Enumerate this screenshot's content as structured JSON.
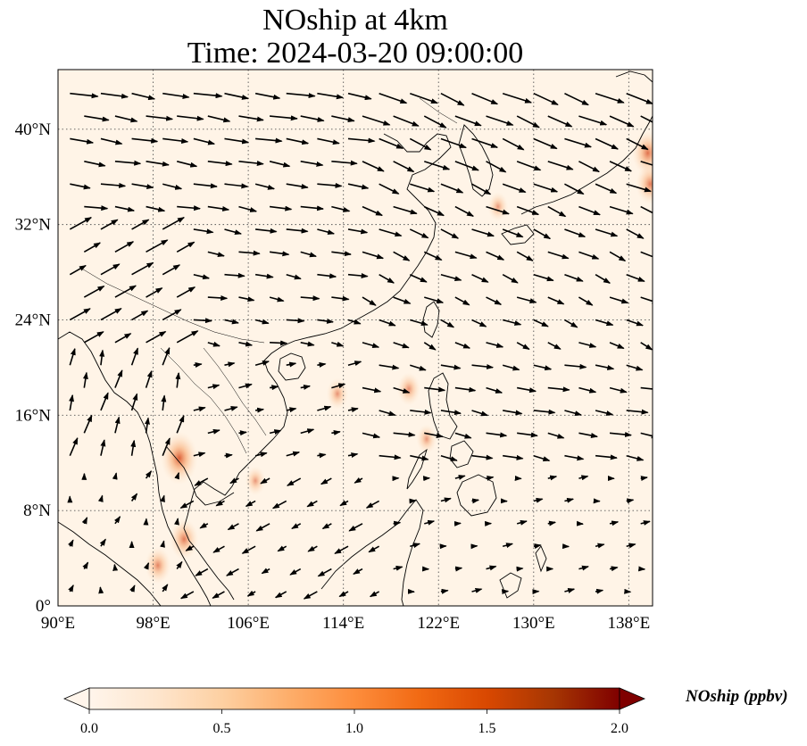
{
  "title": {
    "line1": "NOship at 4km",
    "line2": "Time: 2024-03-20 09:00:00"
  },
  "map": {
    "lon_range": [
      90,
      140
    ],
    "lat_range": [
      0,
      45
    ],
    "lon_ticks": [
      {
        "value": 90,
        "label": "90°E"
      },
      {
        "value": 98,
        "label": "98°E"
      },
      {
        "value": 106,
        "label": "106°E"
      },
      {
        "value": 114,
        "label": "114°E"
      },
      {
        "value": 122,
        "label": "122°E"
      },
      {
        "value": 130,
        "label": "130°E"
      },
      {
        "value": 138,
        "label": "138°E"
      }
    ],
    "lat_ticks": [
      {
        "value": 0,
        "label": "0°"
      },
      {
        "value": 8,
        "label": "8°N"
      },
      {
        "value": 16,
        "label": "16°N"
      },
      {
        "value": 24,
        "label": "24°N"
      },
      {
        "value": 32,
        "label": "32°N"
      },
      {
        "value": 40,
        "label": "40°N"
      }
    ],
    "gridlines": true,
    "field_colors": {
      "background": "#fff4e7",
      "low": "#fde3c4",
      "mid": "#f7a46a",
      "high": "#d9542b"
    },
    "hotspots": [
      {
        "lon": 100.2,
        "lat": 12.4,
        "level": 0.9
      },
      {
        "lon": 100.6,
        "lat": 5.6,
        "level": 0.6
      },
      {
        "lon": 98.4,
        "lat": 3.4,
        "level": 0.5
      },
      {
        "lon": 139.6,
        "lat": 38.0,
        "level": 0.7
      },
      {
        "lon": 139.8,
        "lat": 35.4,
        "level": 0.6
      },
      {
        "lon": 119.5,
        "lat": 18.2,
        "level": 0.4
      },
      {
        "lon": 113.5,
        "lat": 17.8,
        "level": 0.35
      },
      {
        "lon": 121.0,
        "lat": 14.0,
        "level": 0.3
      },
      {
        "lon": 106.6,
        "lat": 10.5,
        "level": 0.3
      },
      {
        "lon": 127.0,
        "lat": 33.5,
        "level": 0.3
      }
    ]
  },
  "colorbar": {
    "label": "NOship (ppbv)",
    "min": 0.0,
    "max": 2.0,
    "extend": "both",
    "ticks": [
      {
        "value": 0.0,
        "label": "0.0"
      },
      {
        "value": 0.5,
        "label": "0.5"
      },
      {
        "value": 1.0,
        "label": "1.0"
      },
      {
        "value": 1.5,
        "label": "1.5"
      },
      {
        "value": 2.0,
        "label": "2.0"
      }
    ],
    "colormap": [
      "#fff5eb",
      "#fee6ce",
      "#fdd0a2",
      "#fdae6b",
      "#fd8d3c",
      "#f16913",
      "#d94801",
      "#a63603",
      "#7f0000"
    ]
  }
}
